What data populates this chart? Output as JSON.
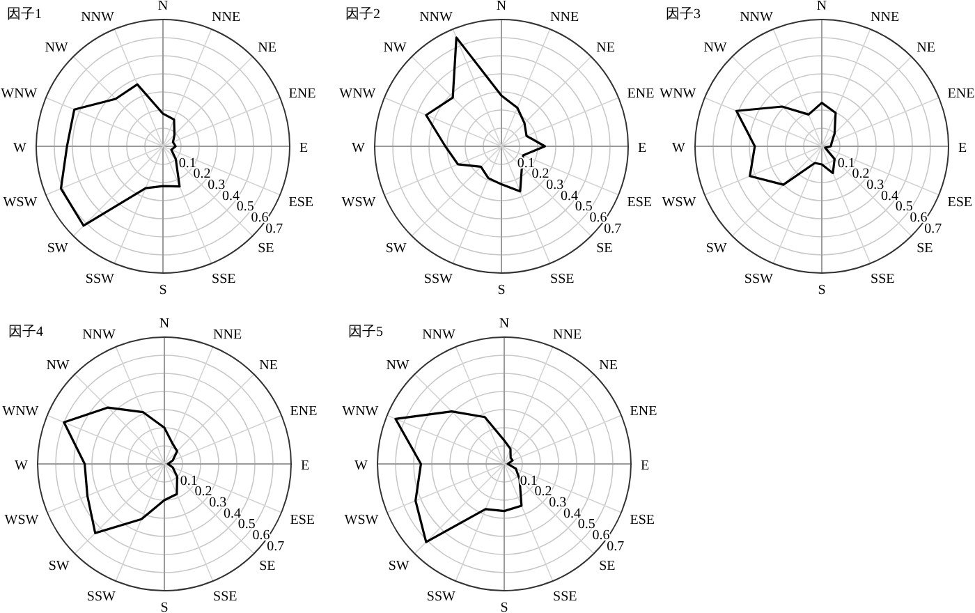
{
  "chart_data": [
    {
      "type": "radar",
      "title": "因子1",
      "categories": [
        "N",
        "NNE",
        "NE",
        "ENE",
        "E",
        "ESE",
        "SE",
        "SSE",
        "S",
        "SSW",
        "SW",
        "WSW",
        "W",
        "WNW",
        "NW",
        "NNW"
      ],
      "ylim": [
        0,
        0.7
      ],
      "yticks": [
        0.1,
        0.2,
        0.3,
        0.4,
        0.5,
        0.6,
        0.7
      ],
      "grid": true,
      "series": [
        {
          "color": "#000000",
          "values": [
            0.18,
            0.16,
            0.09,
            0.06,
            0.07,
            0.05,
            0.1,
            0.24,
            0.22,
            0.25,
            0.62,
            0.61,
            0.53,
            0.53,
            0.37,
            0.37
          ]
        }
      ]
    },
    {
      "type": "radar",
      "title": "因子2",
      "categories": [
        "N",
        "NNE",
        "NE",
        "ENE",
        "E",
        "ESE",
        "SE",
        "SSE",
        "S",
        "SSW",
        "SW",
        "WSW",
        "W",
        "WNW",
        "NW",
        "NNW"
      ],
      "ylim": [
        0,
        0.7
      ],
      "yticks": [
        0.1,
        0.2,
        0.3,
        0.4,
        0.5,
        0.6,
        0.7
      ],
      "grid": true,
      "series": [
        {
          "color": "#000000",
          "values": [
            0.28,
            0.23,
            0.18,
            0.15,
            0.24,
            0.13,
            0.16,
            0.27,
            0.21,
            0.19,
            0.16,
            0.26,
            0.31,
            0.45,
            0.38,
            0.65
          ]
        }
      ]
    },
    {
      "type": "radar",
      "title": "因子3",
      "categories": [
        "N",
        "NNE",
        "NE",
        "ENE",
        "E",
        "ESE",
        "SE",
        "SSE",
        "S",
        "SSW",
        "SW",
        "WSW",
        "W",
        "WNW",
        "NW",
        "NNW"
      ],
      "ylim": [
        0,
        0.7
      ],
      "yticks": [
        0.1,
        0.2,
        0.3,
        0.4,
        0.5,
        0.6,
        0.7
      ],
      "grid": true,
      "series": [
        {
          "color": "#000000",
          "values": [
            0.24,
            0.2,
            0.1,
            0.06,
            0.05,
            0.02,
            0.1,
            0.16,
            0.1,
            0.1,
            0.3,
            0.43,
            0.37,
            0.51,
            0.31,
            0.19
          ]
        }
      ]
    },
    {
      "type": "radar",
      "title": "因子4",
      "categories": [
        "N",
        "NNE",
        "NE",
        "ENE",
        "E",
        "ESE",
        "SE",
        "SSE",
        "S",
        "SSW",
        "SW",
        "WSW",
        "W",
        "WNW",
        "NW",
        "NNW"
      ],
      "ylim": [
        0,
        0.7
      ],
      "yticks": [
        0.1,
        0.2,
        0.3,
        0.4,
        0.5,
        0.6,
        0.7
      ],
      "grid": true,
      "series": [
        {
          "color": "#000000",
          "values": [
            0.2,
            0.12,
            0.1,
            0.05,
            0.02,
            0.05,
            0.1,
            0.18,
            0.2,
            0.33,
            0.54,
            0.46,
            0.44,
            0.6,
            0.44,
            0.31
          ]
        }
      ]
    },
    {
      "type": "radar",
      "title": "因子5",
      "categories": [
        "N",
        "NNE",
        "NE",
        "ENE",
        "E",
        "ESE",
        "SE",
        "SSE",
        "S",
        "SSW",
        "SW",
        "WSW",
        "W",
        "WNW",
        "NW",
        "NNW"
      ],
      "ylim": [
        0,
        0.7
      ],
      "yticks": [
        0.1,
        0.2,
        0.3,
        0.4,
        0.5,
        0.6,
        0.7
      ],
      "grid": true,
      "series": [
        {
          "color": "#000000",
          "values": [
            0.13,
            0.09,
            0.05,
            0.05,
            0.02,
            0.07,
            0.12,
            0.25,
            0.26,
            0.27,
            0.61,
            0.53,
            0.46,
            0.65,
            0.41,
            0.28
          ]
        }
      ]
    }
  ]
}
